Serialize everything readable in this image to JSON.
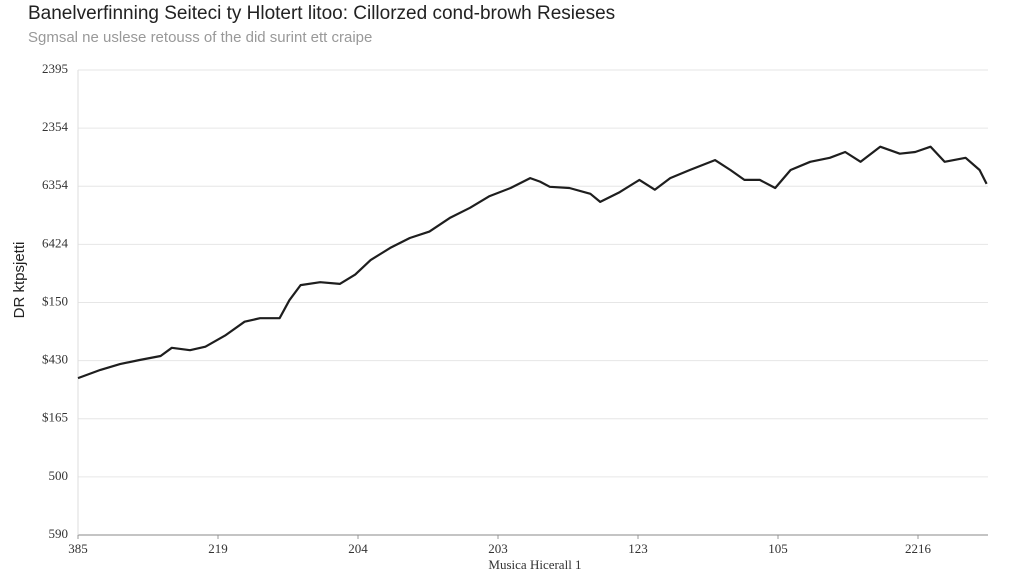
{
  "chart_data": {
    "type": "line",
    "title": "Banelverfinning Seiteci ty Hlotert litoo: Cillorzed cond-browh Resieses",
    "subtitle": "Sgmsal ne uslese retouss of the did surint ett craipe",
    "y_label": "DR ktpsjetti",
    "x_label": "Musica Hicerall 1",
    "ylim": [
      0,
      8
    ],
    "yticks": [
      0,
      1,
      2,
      3,
      4,
      5,
      6,
      7,
      8
    ],
    "ytick_labels": [
      "590",
      "500",
      "$165",
      "$430",
      "$150",
      "6424",
      "6354",
      "2354",
      "2395"
    ],
    "xlim": [
      0,
      6.5
    ],
    "xticks": [
      0,
      1,
      2,
      3,
      4,
      5,
      6
    ],
    "xtick_labels": [
      "385",
      "219",
      "204",
      "203",
      "123",
      "105",
      "2216"
    ],
    "grid": true,
    "series": [
      {
        "color": "#1e1e1e",
        "x": [
          0,
          0.16,
          0.3,
          0.44,
          0.59,
          0.67,
          0.8,
          0.91,
          1.05,
          1.19,
          1.3,
          1.44,
          1.51,
          1.59,
          1.73,
          1.87,
          1.98,
          2.09,
          2.23,
          2.37,
          2.51,
          2.66,
          2.8,
          2.94,
          3.09,
          3.23,
          3.3,
          3.37,
          3.51,
          3.66,
          3.73,
          3.87,
          4.01,
          4.12,
          4.23,
          4.37,
          4.55,
          4.66,
          4.76,
          4.87,
          4.98,
          5.09,
          5.23,
          5.37,
          5.48,
          5.59,
          5.73,
          5.87,
          5.98,
          6.09,
          6.19,
          6.34,
          6.44,
          6.49
        ],
        "values": [
          2.7,
          2.84,
          2.94,
          3.01,
          3.08,
          3.22,
          3.18,
          3.24,
          3.43,
          3.67,
          3.73,
          3.73,
          4.04,
          4.3,
          4.35,
          4.32,
          4.48,
          4.73,
          4.94,
          5.11,
          5.22,
          5.46,
          5.63,
          5.83,
          5.97,
          6.14,
          6.08,
          5.99,
          5.97,
          5.87,
          5.73,
          5.9,
          6.11,
          5.94,
          6.14,
          6.28,
          6.45,
          6.28,
          6.11,
          6.11,
          5.97,
          6.28,
          6.42,
          6.49,
          6.59,
          6.42,
          6.68,
          6.56,
          6.59,
          6.68,
          6.42,
          6.49,
          6.28,
          6.04
        ]
      }
    ]
  }
}
